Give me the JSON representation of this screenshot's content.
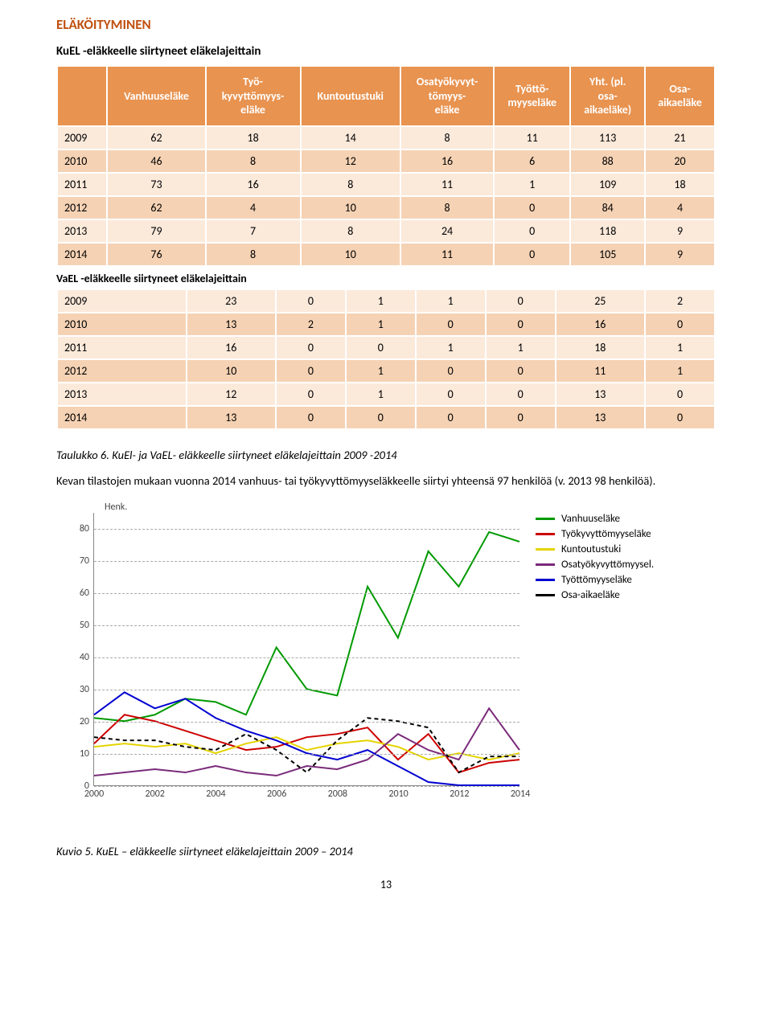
{
  "section_title": "ELÄKÖITYMINEN",
  "table1_title": "KuEL -eläkkeelle siirtyneet eläkelajeittain",
  "mid_title": "VaEL -eläkkeelle siirtyneet eläkelajeittain",
  "headers": [
    "",
    "Vanhuuseläke",
    "Työ-\nkyvyttömyys-\neläke",
    "Kuntoutustuki",
    "Osatyökyvyt-\ntömyys-\neläke",
    "Työttö-\nmyyseläke",
    "Yht. (pl.\nosa-\naikaeläke)",
    "Osa-\naikaeläke"
  ],
  "kuel_rows": [
    [
      "2009",
      62,
      18,
      14,
      8,
      11,
      113,
      21
    ],
    [
      "2010",
      46,
      8,
      12,
      16,
      6,
      88,
      20
    ],
    [
      "2011",
      73,
      16,
      8,
      11,
      1,
      109,
      18
    ],
    [
      "2012",
      62,
      4,
      10,
      8,
      0,
      84,
      4
    ],
    [
      "2013",
      79,
      7,
      8,
      24,
      0,
      118,
      9
    ],
    [
      "2014",
      76,
      8,
      10,
      11,
      0,
      105,
      9
    ]
  ],
  "vael_rows": [
    [
      "2009",
      23,
      0,
      1,
      1,
      0,
      25,
      2
    ],
    [
      "2010",
      13,
      2,
      1,
      0,
      0,
      16,
      0
    ],
    [
      "2011",
      16,
      0,
      0,
      1,
      1,
      18,
      1
    ],
    [
      "2012",
      10,
      0,
      1,
      0,
      0,
      11,
      1
    ],
    [
      "2013",
      12,
      0,
      1,
      0,
      0,
      13,
      0
    ],
    [
      "2014",
      13,
      0,
      0,
      0,
      0,
      13,
      0
    ]
  ],
  "caption1": "Taulukko 6. KuEl- ja VaEL- eläkkeelle siirtyneet eläkelajeittain 2009 -2014",
  "body": "Kevan tilastojen mukaan vuonna 2014 vanhuus- tai työkyvyttömyyseläkkeelle siirtyi yhteensä 97 henkilöä (v. 2013 98 henkilöä).",
  "chart": {
    "type": "line",
    "y_unit": "Henk.",
    "xlim": [
      2000,
      2014
    ],
    "ylim": [
      0,
      85
    ],
    "yticks": [
      0,
      10,
      20,
      30,
      40,
      50,
      60,
      70,
      80
    ],
    "xticks": [
      2000,
      2002,
      2004,
      2006,
      2008,
      2010,
      2012,
      2014
    ],
    "grid_color": "#aaaaaa",
    "background_color": "#ffffff",
    "line_width": 2,
    "legend": [
      {
        "label": "Vanhuuseläke",
        "color": "#009900"
      },
      {
        "label": "Työkyvyttömyyseläke",
        "color": "#cc0000"
      },
      {
        "label": "Kuntoutustuki",
        "color": "#e5d400"
      },
      {
        "label": "Osatyökyvyttömyysel.",
        "color": "#7a2a7a"
      },
      {
        "label": "Työttömyyseläke",
        "color": "#0000d0"
      },
      {
        "label": "Osa-aikaeläke",
        "color": "#000000"
      }
    ],
    "series": {
      "vanhuus": {
        "color": "#009900",
        "values": [
          21,
          20,
          22,
          27,
          26,
          22,
          43,
          30,
          28,
          62,
          46,
          73,
          62,
          79,
          76
        ]
      },
      "tyokyv": {
        "color": "#cc0000",
        "values": [
          13,
          22,
          20,
          17,
          14,
          11,
          12,
          15,
          16,
          18,
          8,
          16,
          4,
          7,
          8
        ]
      },
      "kuntoutus": {
        "color": "#e5d400",
        "values": [
          12,
          13,
          12,
          13,
          10,
          13,
          15,
          11,
          13,
          14,
          12,
          8,
          10,
          8,
          10
        ]
      },
      "osatyok": {
        "color": "#7a2a7a",
        "values": [
          3,
          4,
          5,
          4,
          6,
          4,
          3,
          6,
          5,
          8,
          16,
          11,
          8,
          24,
          11
        ]
      },
      "tyottom": {
        "color": "#0000d0",
        "values": [
          22,
          29,
          24,
          27,
          21,
          17,
          14,
          10,
          8,
          11,
          6,
          1,
          0,
          0,
          0
        ]
      },
      "osaaika": {
        "color": "#000000",
        "dash": true,
        "values": [
          15,
          14,
          14,
          12,
          11,
          16,
          11,
          4,
          14,
          21,
          20,
          18,
          4,
          9,
          9
        ]
      }
    }
  },
  "caption2": "Kuvio 5. KuEL – eläkkeelle siirtyneet eläkelajeittain 2009 – 2014",
  "page_number": "13"
}
